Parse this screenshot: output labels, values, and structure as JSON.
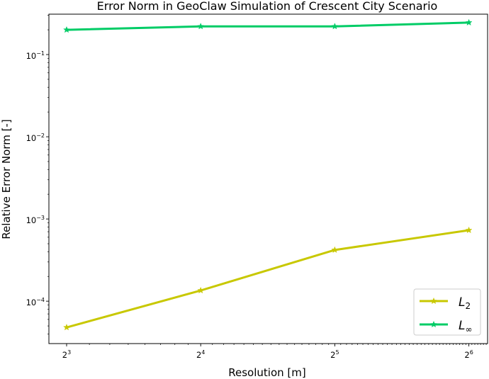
{
  "chart_data": {
    "type": "line",
    "title": "Error Norm in GeoClaw Simulation of Crescent City Scenario",
    "xlabel": "Resolution [m]",
    "ylabel": "Relative Error Norm [-]",
    "x": [
      8,
      16,
      32,
      64
    ],
    "xscale": "log2",
    "yscale": "log10",
    "xlim": [
      7.3,
      70.5
    ],
    "ylim": [
      3.05e-05,
      0.31
    ],
    "x_tick_labels": [
      {
        "base": "2",
        "exp": "3"
      },
      {
        "base": "2",
        "exp": "4"
      },
      {
        "base": "2",
        "exp": "5"
      },
      {
        "base": "2",
        "exp": "6"
      }
    ],
    "y_tick_labels": [
      {
        "base": "10",
        "exp": "−4"
      },
      {
        "base": "10",
        "exp": "−3"
      },
      {
        "base": "10",
        "exp": "−2"
      },
      {
        "base": "10",
        "exp": "−1"
      }
    ],
    "series": [
      {
        "name": "L",
        "subscript": "2",
        "color": "#c8c800",
        "marker": "star",
        "values": [
          4.8e-05,
          0.000135,
          0.00042,
          0.00073
        ]
      },
      {
        "name": "L",
        "subscript": "∞",
        "color": "#00cc66",
        "marker": "star",
        "values": [
          0.2,
          0.22,
          0.22,
          0.245
        ]
      }
    ],
    "legend_position": "lower-right",
    "grid": false
  }
}
